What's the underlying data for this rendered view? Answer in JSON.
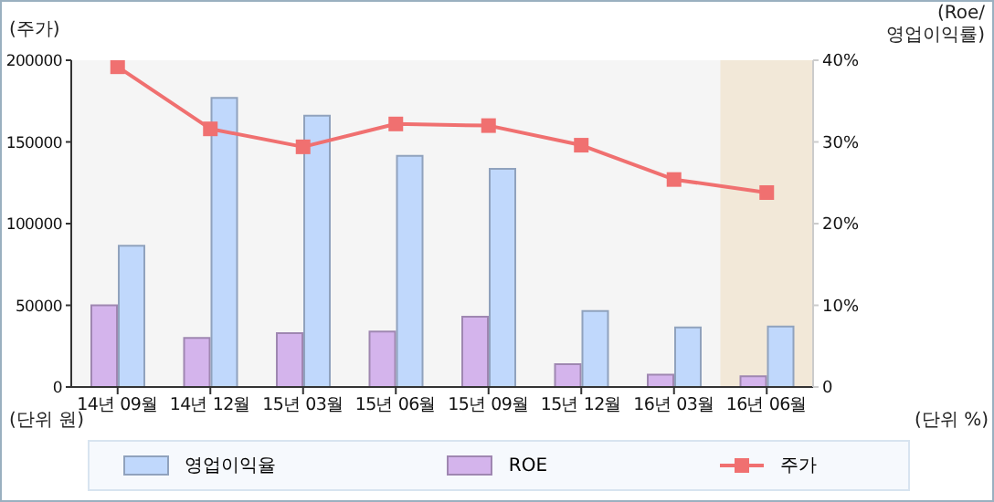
{
  "chart_data": {
    "type": "bar",
    "ylabel": "(주가)",
    "y2label": "(Roe/\n영업이익률)",
    "categories": [
      "14년 09월",
      "14년 12월",
      "15년 03월",
      "15년 06월",
      "15년 09월",
      "15년 12월",
      "16년 03월",
      "16년 06월"
    ],
    "series": [
      {
        "name": "영업이익율",
        "axis": "y2",
        "color": "#c0d8fc",
        "values": [
          17.3,
          35.4,
          33.2,
          28.3,
          26.7,
          9.3,
          7.3,
          7.4
        ]
      },
      {
        "name": "ROE",
        "axis": "y2",
        "color": "#d4b4ec",
        "values": [
          10.0,
          6.0,
          6.6,
          6.8,
          8.6,
          2.8,
          1.5,
          1.3
        ]
      },
      {
        "name": "주가",
        "type": "line",
        "axis": "y",
        "color": "#f07070",
        "values": [
          196000,
          158000,
          147000,
          161000,
          160000,
          148000,
          127000,
          119000
        ]
      }
    ],
    "ylim": [
      0,
      200000
    ],
    "yticks": [
      0,
      50000,
      100000,
      150000,
      200000
    ],
    "y2lim": [
      0,
      40
    ],
    "y2ticks": [
      0,
      {
        "value": 10,
        "label": "10%"
      },
      {
        "value": 20,
        "label": "20%"
      },
      {
        "value": 30,
        "label": "30%"
      },
      {
        "value": 40,
        "label": "40%"
      }
    ],
    "bands": [
      {
        "axis": "x",
        "from": "16년 06월",
        "to": "16년 06월",
        "color": "#f2e8d8"
      }
    ],
    "marker": "square",
    "legend": "bottom",
    "annotations": [
      "(단위 원)",
      "(단위 %)"
    ]
  }
}
